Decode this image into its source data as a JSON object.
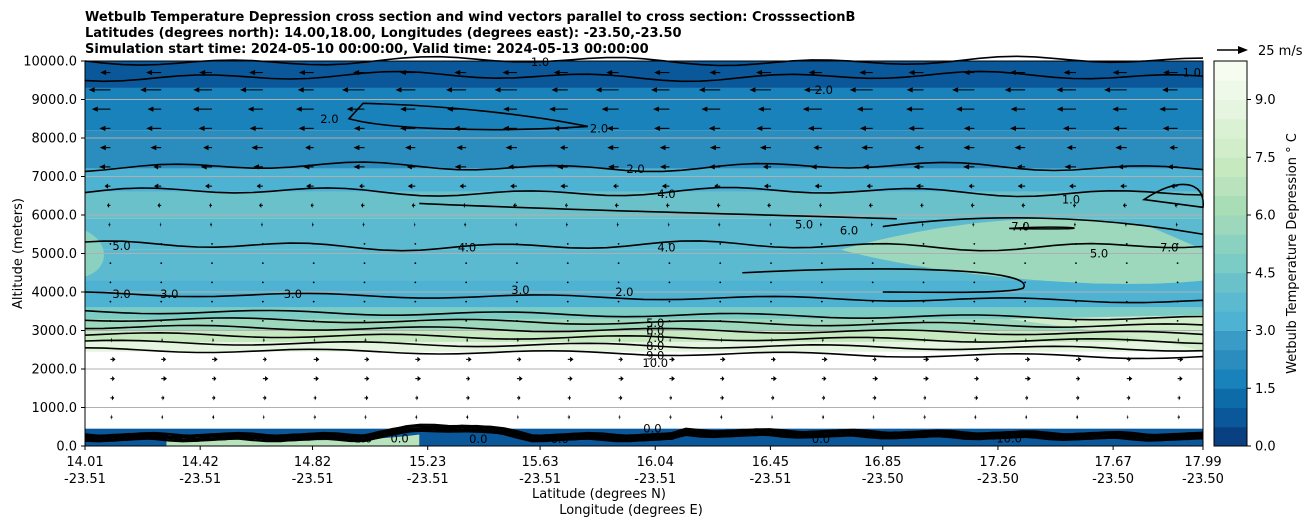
{
  "title": {
    "line1": "Wetbulb Temperature Depression cross section and wind vectors parallel to cross section: CrosssectionB",
    "line2": "Latitudes (degrees north): 14.00,18.00, Longitudes (degrees east): -23.50,-23.50",
    "line3": "Simulation start time: 2024-05-10 00:00:00, Valid time: 2024-05-13 00:00:00"
  },
  "quiver_key": "25 m/s",
  "chart_data": {
    "type": "contour-cross-section",
    "ylabel": "Altitude (meters)",
    "xlabel_lat": "Latitude (degrees N)",
    "xlabel_lon": "Longitude (degrees E)",
    "ylim": [
      0,
      10000
    ],
    "y_ticks": [
      "0.0",
      "1000.0",
      "2000.0",
      "3000.0",
      "4000.0",
      "5000.0",
      "6000.0",
      "7000.0",
      "8000.0",
      "9000.0",
      "10000.0"
    ],
    "y_tick_values": [
      0,
      1000,
      2000,
      3000,
      4000,
      5000,
      6000,
      7000,
      8000,
      9000,
      10000
    ],
    "x_ticks": [
      {
        "lat": "14.01",
        "lon": "-23.51"
      },
      {
        "lat": "14.42",
        "lon": "-23.51"
      },
      {
        "lat": "14.82",
        "lon": "-23.51"
      },
      {
        "lat": "15.23",
        "lon": "-23.51"
      },
      {
        "lat": "15.63",
        "lon": "-23.51"
      },
      {
        "lat": "16.04",
        "lon": "-23.51"
      },
      {
        "lat": "16.45",
        "lon": "-23.51"
      },
      {
        "lat": "16.85",
        "lon": "-23.50"
      },
      {
        "lat": "17.26",
        "lon": "-23.50"
      },
      {
        "lat": "17.67",
        "lon": "-23.50"
      },
      {
        "lat": "17.99",
        "lon": "-23.50"
      }
    ],
    "x_tick_values": [
      14.01,
      14.42,
      14.82,
      15.23,
      15.63,
      16.04,
      16.45,
      16.85,
      17.26,
      17.67,
      17.99
    ],
    "xlim": [
      14.01,
      17.99
    ],
    "colorbar": {
      "label": "Wetbulb Temperature Depression ° C",
      "min": 0,
      "max": 10,
      "levels": 20,
      "ticks": [
        "0.0",
        "1.5",
        "3.0",
        "4.5",
        "6.0",
        "7.5",
        "9.0"
      ],
      "tick_values": [
        0,
        1.5,
        3,
        4.5,
        6,
        7.5,
        9
      ],
      "colors": [
        "#084081",
        "#0a5799",
        "#0d6ca8",
        "#1982bb",
        "#2b8cbe",
        "#3a9cc6",
        "#4eb3d3",
        "#5bbad0",
        "#6bc1ca",
        "#7bccc4",
        "#8ad1c0",
        "#9dd8bc",
        "#a8ddb5",
        "#b8e3bc",
        "#c7e9c0",
        "#d1edca",
        "#dbf1d4",
        "#e5f5e0",
        "#eef9ea",
        "#f7fcf0"
      ]
    },
    "contour_lines": [
      {
        "level": "1.0",
        "alt_m": 10000
      },
      {
        "level": "2.0",
        "alt_m": 9600
      },
      {
        "level": "2.0",
        "alt_m": 7250
      },
      {
        "level": "4.0",
        "alt_m": 6600
      },
      {
        "level": "4.0",
        "alt_m": 5200
      },
      {
        "level": "3.0",
        "alt_m": 3950
      },
      {
        "level": "5.0",
        "alt_m": 3500
      },
      {
        "level": "6.0",
        "alt_m": 3300
      },
      {
        "level": "7.0",
        "alt_m": 3100
      },
      {
        "level": "8.0",
        "alt_m": 2900
      },
      {
        "level": "9.0",
        "alt_m": 2700
      },
      {
        "level": "10.0",
        "alt_m": 2500
      }
    ],
    "contour_labels": [
      "1.0",
      "2.0",
      "2.0",
      "2.0",
      "2.0",
      "4.0",
      "4.0",
      "4.0",
      "5.0",
      "5.0",
      "5.0",
      "6.0",
      "3.0",
      "3.0",
      "3.0",
      "3.0",
      "5.0",
      "6.0",
      "7.0",
      "8.0",
      "9.0",
      "10.0",
      "1.0",
      "0.0",
      "0.0",
      "0.0",
      "0.0",
      "0.0",
      "10.0",
      "1.0",
      "1.0",
      "7.0",
      "7.0",
      "2.0",
      "2.0"
    ],
    "wind": {
      "note": "vectors parallel to cross section; strong easterly (leftward) flow aloft, weak westerly (rightward) flow below 2000 m",
      "levels_m": [
        9700,
        9250,
        8750,
        8250,
        7750,
        7250,
        6750,
        6250,
        5750,
        5250,
        4750,
        4250,
        3750,
        3250,
        2750,
        2250,
        1750,
        1250,
        750
      ],
      "u_ms": [
        -4,
        -6,
        -5,
        -4,
        -3,
        -3,
        -2,
        -1,
        -0.5,
        -0.2,
        -0.1,
        -0.1,
        -0.2,
        -0.1,
        0.5,
        1.5,
        1.5,
        1,
        0.6
      ]
    }
  }
}
